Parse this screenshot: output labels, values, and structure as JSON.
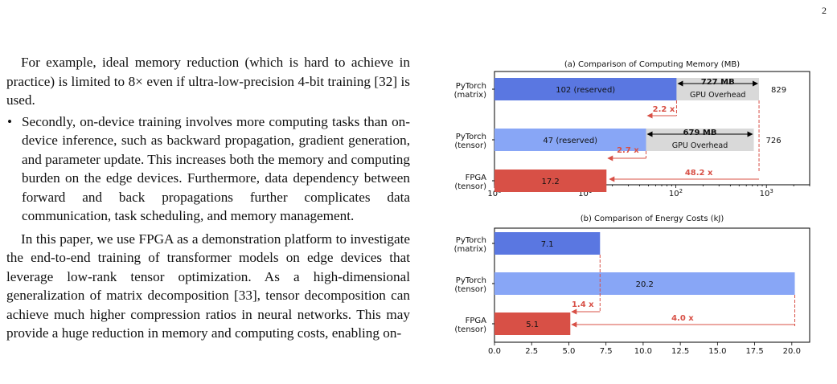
{
  "page": {
    "page_number": "2",
    "text": {
      "para1": "For example, ideal memory reduction (which is hard to achieve in practice) is limited to 8× even if ultra-low-precision 4-bit training [32] is used.",
      "bullet_mark": "•",
      "bullet2": "Secondly, on-device training involves more computing tasks than on-device inference, such as backward propagation, gradient generation, and parameter update. This increases both the memory and computing burden on the edge devices. Furthermore, data dependency between forward and back propagations further complicates data communication, task scheduling, and memory management.",
      "para3": "In this paper, we use FPGA as a demonstration platform to investigate the end-to-end training of transformer models on edge devices that leverage low-rank tensor optimization. As a high-dimensional generalization of matrix decomposition [33], tensor decomposition can achieve much higher compression ratios in neural networks. This may provide a huge reduction in memory and computing costs, enabling on-"
    }
  },
  "colors": {
    "matrix": "#5a77e1",
    "tensor": "#88a6f6",
    "fpga": "#d85046",
    "overhead": "#d9d9d9",
    "annotation": "#d85046"
  },
  "chart_data": [
    {
      "type": "bar",
      "orientation": "horizontal",
      "stacked": true,
      "title": "(a) Comparison of Computing Memory (MB)",
      "xscale": "log",
      "xlim": [
        1,
        3000
      ],
      "xtick_labels": [
        "10^0",
        "10^1",
        "10^2",
        "10^3"
      ],
      "xticks": [
        1,
        10,
        100,
        1000
      ],
      "categories": [
        "PyTorch\n(matrix)",
        "PyTorch\n(tensor)",
        "FPGA\n(tensor)"
      ],
      "series": [
        {
          "values": [
            102,
            47,
            17.2
          ],
          "labels": [
            "102 (reserved)",
            "47 (reserved)",
            "17.2"
          ]
        },
        {
          "values": [
            727,
            679,
            null
          ],
          "labels": [
            "727 MB",
            "679 MB",
            null
          ],
          "sublabel": "GPU Overhead"
        }
      ],
      "totals": [
        "829",
        "726",
        null
      ],
      "annotations": [
        "2.2 x",
        "2.7 x",
        "48.2 x"
      ],
      "grid": false
    },
    {
      "type": "bar",
      "orientation": "horizontal",
      "title": "(b) Comparison of Energy Costs (kJ)",
      "xlim": [
        0,
        21.2
      ],
      "xticks": [
        0,
        2.5,
        5,
        7.5,
        10,
        12.5,
        15,
        17.5,
        20
      ],
      "xtick_labels": [
        "0.0",
        "2.5",
        "5.0",
        "7.5",
        "10.0",
        "12.5",
        "15.0",
        "17.5",
        "20.0"
      ],
      "categories": [
        "PyTorch\n(matrix)",
        "PyTorch\n(tensor)",
        "FPGA\n(tensor)"
      ],
      "values": [
        7.1,
        20.2,
        5.1
      ],
      "labels": [
        "7.1",
        "20.2",
        "5.1"
      ],
      "annotations": [
        "1.4 x",
        "4.0 x"
      ],
      "grid": false
    }
  ]
}
